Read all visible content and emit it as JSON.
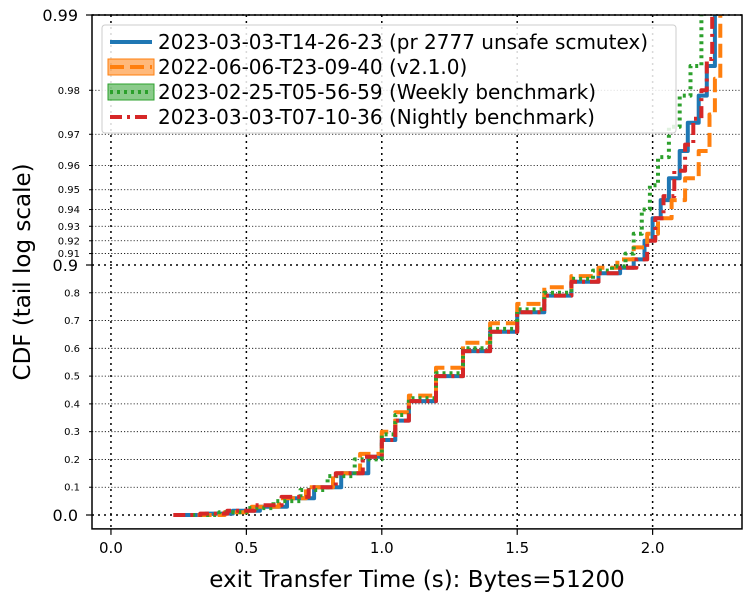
{
  "chart_data": {
    "type": "line",
    "title": "",
    "xlabel": "exit Transfer Time (s): Bytes=51200",
    "ylabel": "CDF (tail log scale)",
    "xlim": [
      -0.07,
      2.33
    ],
    "x_ticks": [
      0.0,
      0.5,
      1.0,
      1.5,
      2.0
    ],
    "x_tick_labels": [
      "0.0",
      "0.5",
      "1.0",
      "1.5",
      "2.0"
    ],
    "y_scale": "tail-log",
    "ylim": [
      -0.05,
      0.99
    ],
    "y_major_ticks": [
      {
        "value": 0.0,
        "label": "0.0"
      },
      {
        "value": 0.9,
        "label": "0.9"
      },
      {
        "value": 0.99,
        "label": "0.99"
      }
    ],
    "y_minor_ticks": [
      {
        "value": 0.1,
        "label": "0.1"
      },
      {
        "value": 0.2,
        "label": "0.2"
      },
      {
        "value": 0.3,
        "label": "0.3"
      },
      {
        "value": 0.4,
        "label": "0.4"
      },
      {
        "value": 0.5,
        "label": "0.5"
      },
      {
        "value": 0.6,
        "label": "0.6"
      },
      {
        "value": 0.7,
        "label": "0.7"
      },
      {
        "value": 0.8,
        "label": "0.8"
      },
      {
        "value": 0.91,
        "label": "0.91"
      },
      {
        "value": 0.92,
        "label": "0.92"
      },
      {
        "value": 0.93,
        "label": "0.93"
      },
      {
        "value": 0.94,
        "label": "0.94"
      },
      {
        "value": 0.95,
        "label": "0.95"
      },
      {
        "value": 0.96,
        "label": "0.96"
      },
      {
        "value": 0.97,
        "label": "0.97"
      },
      {
        "value": 0.98,
        "label": "0.98"
      }
    ],
    "grid": true,
    "legend_position": "top-left",
    "series": [
      {
        "name": "2023-03-03-T14-26-23 (pr 2777 unsafe scmutex)",
        "color": "#1f77b4",
        "dash": "solid",
        "points": [
          [
            0.24,
            0.0
          ],
          [
            0.35,
            0.005
          ],
          [
            0.45,
            0.015
          ],
          [
            0.55,
            0.03
          ],
          [
            0.65,
            0.06
          ],
          [
            0.75,
            0.1
          ],
          [
            0.85,
            0.15
          ],
          [
            0.95,
            0.21
          ],
          [
            1.0,
            0.27
          ],
          [
            1.05,
            0.34
          ],
          [
            1.1,
            0.41
          ],
          [
            1.2,
            0.5
          ],
          [
            1.3,
            0.59
          ],
          [
            1.4,
            0.66
          ],
          [
            1.5,
            0.73
          ],
          [
            1.6,
            0.79
          ],
          [
            1.7,
            0.84
          ],
          [
            1.8,
            0.87
          ],
          [
            1.88,
            0.89
          ],
          [
            1.93,
            0.905
          ],
          [
            1.97,
            0.92
          ],
          [
            2.0,
            0.935
          ],
          [
            2.03,
            0.945
          ],
          [
            2.06,
            0.955
          ],
          [
            2.1,
            0.965
          ],
          [
            2.13,
            0.973
          ],
          [
            2.17,
            0.979
          ],
          [
            2.2,
            0.984
          ],
          [
            2.23,
            0.99
          ]
        ]
      },
      {
        "name": "2022-06-06-T23-09-40 (v2.1.0)",
        "color": "#ff7f0e",
        "dash": "dashed",
        "points": [
          [
            0.32,
            0.0
          ],
          [
            0.42,
            0.01
          ],
          [
            0.52,
            0.03
          ],
          [
            0.62,
            0.06
          ],
          [
            0.72,
            0.1
          ],
          [
            0.82,
            0.15
          ],
          [
            0.92,
            0.22
          ],
          [
            1.0,
            0.3
          ],
          [
            1.05,
            0.37
          ],
          [
            1.1,
            0.43
          ],
          [
            1.2,
            0.53
          ],
          [
            1.3,
            0.62
          ],
          [
            1.4,
            0.69
          ],
          [
            1.5,
            0.76
          ],
          [
            1.6,
            0.82
          ],
          [
            1.7,
            0.86
          ],
          [
            1.8,
            0.89
          ],
          [
            1.87,
            0.905
          ],
          [
            1.93,
            0.915
          ],
          [
            1.98,
            0.925
          ],
          [
            2.02,
            0.935
          ],
          [
            2.07,
            0.945
          ],
          [
            2.12,
            0.955
          ],
          [
            2.17,
            0.965
          ],
          [
            2.21,
            0.975
          ],
          [
            2.23,
            0.982
          ],
          [
            2.25,
            0.99
          ]
        ]
      },
      {
        "name": "2023-02-25-T05-56-59 (Weekly benchmark)",
        "color": "#2ca02c",
        "dash": "dotted",
        "points": [
          [
            0.3,
            0.0
          ],
          [
            0.4,
            0.01
          ],
          [
            0.5,
            0.025
          ],
          [
            0.6,
            0.05
          ],
          [
            0.7,
            0.09
          ],
          [
            0.8,
            0.14
          ],
          [
            0.9,
            0.2
          ],
          [
            1.0,
            0.29
          ],
          [
            1.05,
            0.36
          ],
          [
            1.1,
            0.42
          ],
          [
            1.2,
            0.51
          ],
          [
            1.3,
            0.6
          ],
          [
            1.4,
            0.67
          ],
          [
            1.5,
            0.74
          ],
          [
            1.6,
            0.8
          ],
          [
            1.7,
            0.85
          ],
          [
            1.78,
            0.88
          ],
          [
            1.85,
            0.895
          ],
          [
            1.9,
            0.91
          ],
          [
            1.93,
            0.925
          ],
          [
            1.96,
            0.94
          ],
          [
            1.99,
            0.952
          ],
          [
            2.02,
            0.963
          ],
          [
            2.06,
            0.972
          ],
          [
            2.1,
            0.979
          ],
          [
            2.14,
            0.984
          ],
          [
            2.18,
            0.99
          ]
        ]
      },
      {
        "name": "2023-03-03-T07-10-36 (Nightly benchmark)",
        "color": "#d62728",
        "dash": "dashdot",
        "points": [
          [
            0.23,
            0.0
          ],
          [
            0.33,
            0.005
          ],
          [
            0.43,
            0.015
          ],
          [
            0.53,
            0.035
          ],
          [
            0.63,
            0.065
          ],
          [
            0.73,
            0.1
          ],
          [
            0.83,
            0.15
          ],
          [
            0.93,
            0.21
          ],
          [
            1.0,
            0.27
          ],
          [
            1.05,
            0.34
          ],
          [
            1.1,
            0.41
          ],
          [
            1.2,
            0.5
          ],
          [
            1.3,
            0.59
          ],
          [
            1.4,
            0.66
          ],
          [
            1.5,
            0.73
          ],
          [
            1.6,
            0.79
          ],
          [
            1.7,
            0.84
          ],
          [
            1.8,
            0.87
          ],
          [
            1.88,
            0.89
          ],
          [
            1.94,
            0.905
          ],
          [
            1.98,
            0.92
          ],
          [
            2.01,
            0.935
          ],
          [
            2.04,
            0.947
          ],
          [
            2.08,
            0.958
          ],
          [
            2.12,
            0.967
          ],
          [
            2.15,
            0.974
          ],
          [
            2.18,
            0.98
          ],
          [
            2.2,
            0.985
          ],
          [
            2.22,
            0.99
          ]
        ]
      }
    ]
  }
}
